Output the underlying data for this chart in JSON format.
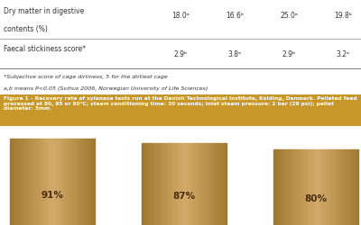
{
  "table_rows": [
    {
      "label": "Dry matter in digestive\ncontents (%)",
      "values": [
        "18.0ᵃ",
        "16.6ᵇ",
        "25.0ᵃ",
        "19.8ᵇ"
      ]
    },
    {
      "label": "Faecal stickiness score*",
      "values": [
        "2.9ᵇ",
        "3.8ᵃ",
        "2.9ᵇ",
        "3.2ᵃ"
      ]
    }
  ],
  "footnotes": [
    "*Subjective score of cage dirtiness, 5 for the dirtiest cage",
    "a,b means P<0.05 (Svihus 2006, Norwegian University of Life Sciences)"
  ],
  "caption": "Figure 1 – Recovery rate of xylanase tests run at the Danish Technological Institute, Kolding, Denmark. Pelleted feed processed at 80, 85 or 90°C; steam conditioning time: 30 seconds; inlet steam pressure: 2 bar (29 psi); pellet diameter: 3mm.",
  "caption_bg": "#c8972a",
  "caption_text_color": "#ffffff",
  "bar_values": [
    91,
    87,
    80
  ],
  "bar_labels": [
    "91%",
    "87%",
    "80%"
  ],
  "bar_color_light": "#d4aa6a",
  "bar_color_dark": "#a07830",
  "bar_color_mid": "#c09050",
  "background_color": "#f5f0e8",
  "table_bg": "#ffffff",
  "header_line_color": "#888888",
  "text_color": "#333333",
  "figure_bg": "#f5f0e8"
}
